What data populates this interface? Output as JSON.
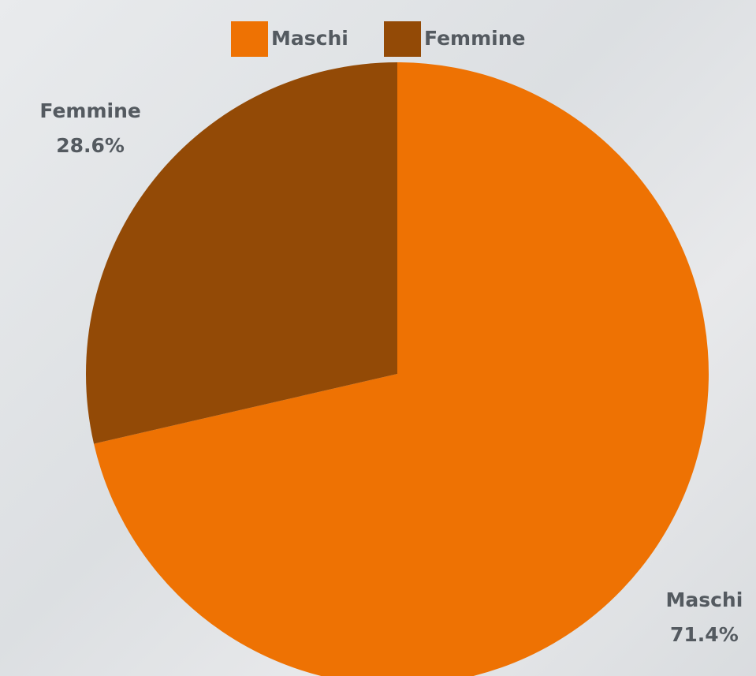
{
  "chart_data": {
    "type": "pie",
    "categories": [
      "Maschi",
      "Femmine"
    ],
    "values": [
      71.4,
      28.6
    ],
    "value_labels": [
      "71.4%",
      "28.6%"
    ],
    "colors": [
      "#ee7203",
      "#934a06"
    ],
    "legend": "top"
  }
}
